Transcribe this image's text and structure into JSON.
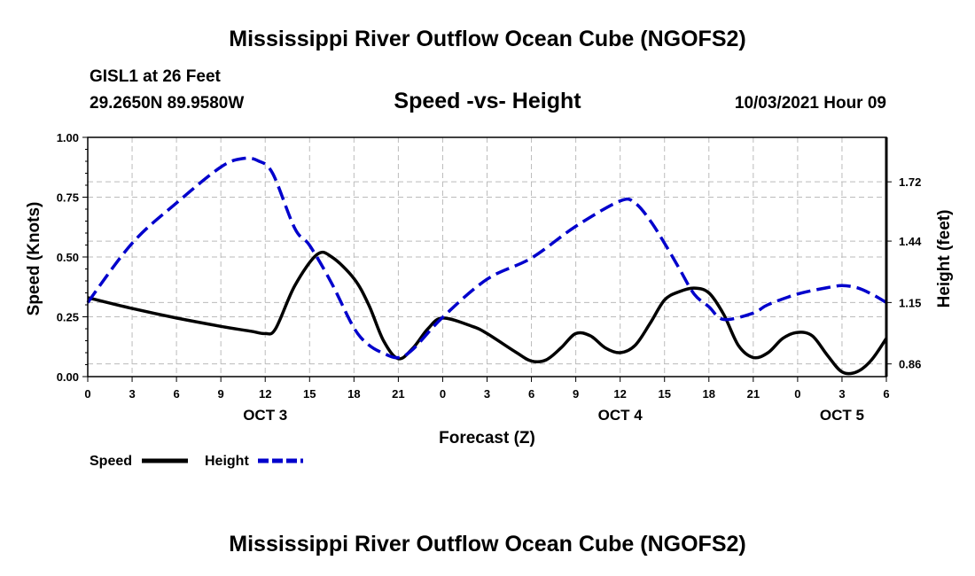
{
  "page": {
    "title_top": "Mississippi River Outflow Ocean Cube (NGOFS2)",
    "title_bottom": "Mississippi River Outflow Ocean Cube (NGOFS2)",
    "station": "GISL1 at 26 Feet",
    "coordinates": "29.2650N  89.9580W",
    "subtitle": "Speed -vs- Height",
    "datetime": "10/03/2021 Hour 09"
  },
  "chart_data": {
    "type": "line",
    "title": "Speed -vs- Height",
    "xlabel": "Forecast (Z)",
    "ylabel": "Speed (Knots)",
    "y2label": "Height (feet)",
    "x_range": [
      0,
      54
    ],
    "x_ticks": [
      0,
      3,
      6,
      9,
      12,
      15,
      18,
      21,
      24,
      27,
      30,
      33,
      36,
      39,
      42,
      45,
      48,
      51,
      54
    ],
    "x_tick_labels": [
      "0",
      "3",
      "6",
      "9",
      "12",
      "15",
      "18",
      "21",
      "0",
      "3",
      "6",
      "9",
      "12",
      "15",
      "18",
      "21",
      "0",
      "3",
      "6"
    ],
    "day_labels": [
      {
        "x": 12,
        "label": "OCT 3"
      },
      {
        "x": 36,
        "label": "OCT 4"
      },
      {
        "x": 51,
        "label": "OCT 5"
      }
    ],
    "ylim": [
      0,
      1.0
    ],
    "y_ticks": [
      0,
      0.25,
      0.5,
      0.75,
      1.0
    ],
    "y_tick_labels": [
      "0.00",
      "0.25",
      "0.50",
      "0.75",
      "1.00"
    ],
    "y2lim": [
      0.8,
      1.93
    ],
    "y2_ticks": [
      0.86,
      1.15,
      1.44,
      1.72
    ],
    "y2_tick_labels": [
      "0.86",
      "1.15",
      "1.44",
      "1.72"
    ],
    "grid": true,
    "legend_position": "bottom-left",
    "series": [
      {
        "name": "Speed",
        "axis": "left",
        "color": "#000000",
        "style": "solid",
        "x": [
          0,
          3,
          6,
          9,
          11,
          12,
          12.7,
          14,
          15.5,
          16.5,
          18,
          19,
          20,
          21,
          22,
          23,
          24,
          26,
          27,
          29,
          30,
          31,
          32,
          33,
          34,
          35,
          36,
          37,
          38,
          39,
          40,
          41,
          42,
          43,
          44,
          45,
          46,
          47,
          48,
          49,
          50,
          51,
          52,
          53,
          54
        ],
        "values": [
          0.33,
          0.285,
          0.245,
          0.21,
          0.19,
          0.18,
          0.2,
          0.38,
          0.51,
          0.5,
          0.41,
          0.3,
          0.15,
          0.075,
          0.12,
          0.2,
          0.245,
          0.21,
          0.18,
          0.1,
          0.065,
          0.07,
          0.12,
          0.18,
          0.17,
          0.12,
          0.1,
          0.13,
          0.22,
          0.32,
          0.355,
          0.37,
          0.35,
          0.26,
          0.13,
          0.08,
          0.1,
          0.16,
          0.185,
          0.17,
          0.09,
          0.02,
          0.02,
          0.07,
          0.16
        ]
      },
      {
        "name": "Height",
        "axis": "right",
        "color": "#0000cc",
        "style": "dashed",
        "x": [
          0,
          3,
          6,
          9,
          10.5,
          11.5,
          12.5,
          14,
          15,
          16.5,
          18,
          19,
          20,
          21,
          22,
          24,
          27,
          30,
          33,
          36,
          37,
          38,
          39,
          40,
          41,
          42,
          43,
          45,
          46,
          48,
          50,
          51,
          52,
          53,
          54
        ],
        "values": [
          1.15,
          1.43,
          1.62,
          1.79,
          1.83,
          1.82,
          1.76,
          1.5,
          1.42,
          1.24,
          1.03,
          0.95,
          0.91,
          0.89,
          0.93,
          1.08,
          1.26,
          1.36,
          1.51,
          1.63,
          1.62,
          1.54,
          1.43,
          1.31,
          1.19,
          1.13,
          1.07,
          1.1,
          1.14,
          1.19,
          1.22,
          1.23,
          1.22,
          1.19,
          1.15
        ]
      }
    ]
  }
}
